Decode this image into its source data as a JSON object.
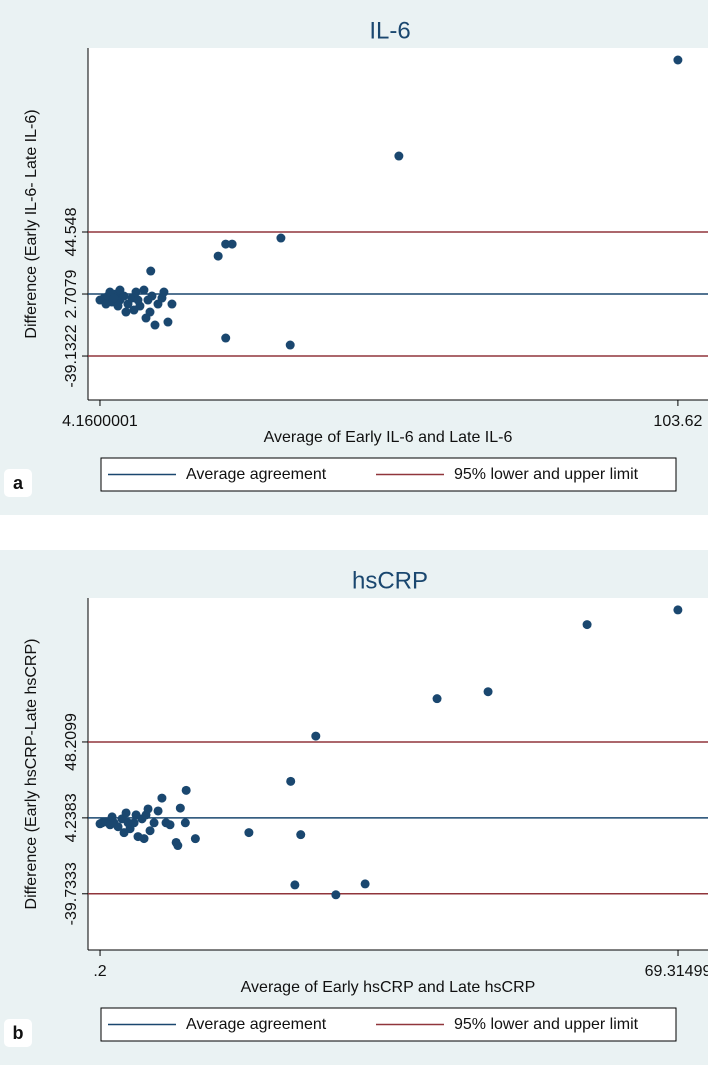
{
  "chart_data": [
    {
      "type": "scatter",
      "panel_label": "a",
      "title": "IL-6",
      "x_label": "Average of Early IL-6 and Late IL-6",
      "y_label": "Difference (Early IL-6- Late IL-6)",
      "color": "#1a476f",
      "x": [
        103.62,
        55.6,
        35.3,
        24.5,
        25.8,
        26.9,
        12.9,
        25.8,
        36.9,
        4.16,
        4.85,
        5.54,
        6.22,
        6.91,
        7.6,
        7.6,
        8.29,
        8.98,
        9.67,
        10.36,
        11.04,
        11.73,
        12.42,
        12.77,
        13.63,
        14.14,
        14.83,
        15.17,
        15.86,
        16.55,
        8.63,
        7.26,
        5.88,
        5.19,
        10.01,
        12.08,
        13.11,
        10.7,
        6.57
      ],
      "values": [
        160.6,
        95.8,
        40.5,
        28.3,
        36.4,
        36.4,
        18.2,
        -27.0,
        -31.7,
        -1.34,
        0.01,
        1.36,
        -2.69,
        2.71,
        5.41,
        -1.34,
        1.36,
        -4.04,
        0.01,
        4.06,
        -5.39,
        5.41,
        -1.34,
        -9.44,
        -18.21,
        -4.04,
        0.01,
        4.06,
        -16.19,
        -4.04,
        -9.44,
        -5.39,
        4.06,
        -4.04,
        -8.09,
        -13.49,
        1.36,
        -1.34,
        0.01
      ],
      "xlim": [
        2.1,
        108.8
      ],
      "ylim": [
        -68.8,
        168.7
      ],
      "xticks": [
        4.1600001,
        103.62
      ],
      "yticks": [
        -39.1322,
        2.7079,
        44.548
      ],
      "reference_lines": [
        {
          "name": "Average agreement",
          "color": "#1a476f",
          "values": [
            2.7079
          ]
        },
        {
          "name": "95% lower and upper limit",
          "color": "#90353b",
          "values": [
            -39.1322,
            44.548
          ]
        }
      ]
    },
    {
      "type": "scatter",
      "panel_label": "b",
      "title": "hsCRP",
      "x_label": "Average of Early hsCRP and Late hsCRP",
      "y_label": "Difference (Early hsCRP-Late hsCRP)",
      "color": "#1a476f",
      "x": [
        69.3,
        58.44,
        46.6,
        40.5,
        26.0,
        23.0,
        18.0,
        24.2,
        23.5,
        28.4,
        31.9,
        10.5,
        7.6,
        9.8,
        10.4,
        11.6,
        9.3,
        9.5,
        0.2,
        0.44,
        0.92,
        1.4,
        1.87,
        2.35,
        2.83,
        3.31,
        3.79,
        4.27,
        4.74,
        5.22,
        5.7,
        6.18,
        6.66,
        7.14,
        8.09,
        8.57,
        3.07,
        5.46,
        5.94,
        1.64,
        4.51,
        3.55
      ],
      "values": [
        124.7,
        116.2,
        77.3,
        73.3,
        51.6,
        25.4,
        -4.3,
        -5.5,
        -34.6,
        -40.3,
        -34.0,
        20.2,
        15.7,
        9.9,
        1.4,
        -7.8,
        -10.0,
        -11.8,
        0.81,
        1.38,
        1.95,
        0.24,
        1.38,
        -0.9,
        3.67,
        7.09,
        -2.04,
        1.38,
        -6.61,
        3.67,
        5.95,
        -3.19,
        1.38,
        8.24,
        1.38,
        0.24,
        -4.33,
        -7.75,
        9.38,
        4.81,
        5.95,
        1.38
      ],
      "xlim": [
        -1.24,
        72.9
      ],
      "ylim": [
        -72.3,
        131.6
      ],
      "xticks": [
        {
          "value": 0.2,
          "label": ".2"
        },
        69.31499
      ],
      "yticks": [
        -39.7333,
        4.2383,
        48.2099
      ],
      "reference_lines": [
        {
          "name": "Average agreement",
          "color": "#1a476f",
          "values": [
            4.2383
          ]
        },
        {
          "name": "95% lower and upper limit",
          "color": "#90353b",
          "values": [
            -39.7333,
            48.2099
          ]
        }
      ]
    }
  ]
}
